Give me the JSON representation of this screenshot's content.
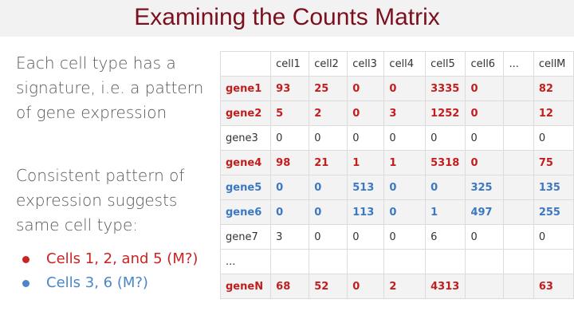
{
  "slide": {
    "title": "Examining the Counts Matrix",
    "para1": "Each cell type has a signature, i.e. a pattern of gene expression",
    "para2": "Consistent pattern of expression suggests same cell type:",
    "bullets": [
      {
        "text": "Cells 1, 2, and 5 (M?)",
        "color": "#cc2222"
      },
      {
        "text": "Cells 3, 6 (M?)",
        "color": "#4a86c8"
      }
    ]
  },
  "table": {
    "headers": [
      "",
      "cell1",
      "cell2",
      "cell3",
      "cell4",
      "cell5",
      "cell6",
      "...",
      "cellM"
    ],
    "rows": [
      {
        "cells": [
          "gene1",
          "93",
          "25",
          "0",
          "0",
          "3335",
          "0",
          "",
          "82"
        ],
        "style": "red"
      },
      {
        "cells": [
          "gene2",
          "5",
          "2",
          "0",
          "3",
          "1252",
          "0",
          "",
          "12"
        ],
        "style": "red"
      },
      {
        "cells": [
          "gene3",
          "0",
          "0",
          "0",
          "0",
          "0",
          "0",
          "",
          "0"
        ],
        "style": "plain"
      },
      {
        "cells": [
          "gene4",
          "98",
          "21",
          "1",
          "1",
          "5318",
          "0",
          "",
          "75"
        ],
        "style": "red"
      },
      {
        "cells": [
          "gene5",
          "0",
          "0",
          "513",
          "0",
          "0",
          "325",
          "",
          "135"
        ],
        "style": "blue"
      },
      {
        "cells": [
          "gene6",
          "0",
          "0",
          "113",
          "0",
          "1",
          "497",
          "",
          "255"
        ],
        "style": "blue"
      },
      {
        "cells": [
          "gene7",
          "3",
          "0",
          "0",
          "0",
          "6",
          "0",
          "",
          "0"
        ],
        "style": "plain"
      },
      {
        "cells": [
          "...",
          "",
          "",
          "",
          "",
          "",
          "",
          "",
          ""
        ],
        "style": "plain"
      },
      {
        "cells": [
          "geneN",
          "68",
          "52",
          "0",
          "2",
          "4313",
          "",
          "",
          "63"
        ],
        "style": "red"
      }
    ]
  }
}
